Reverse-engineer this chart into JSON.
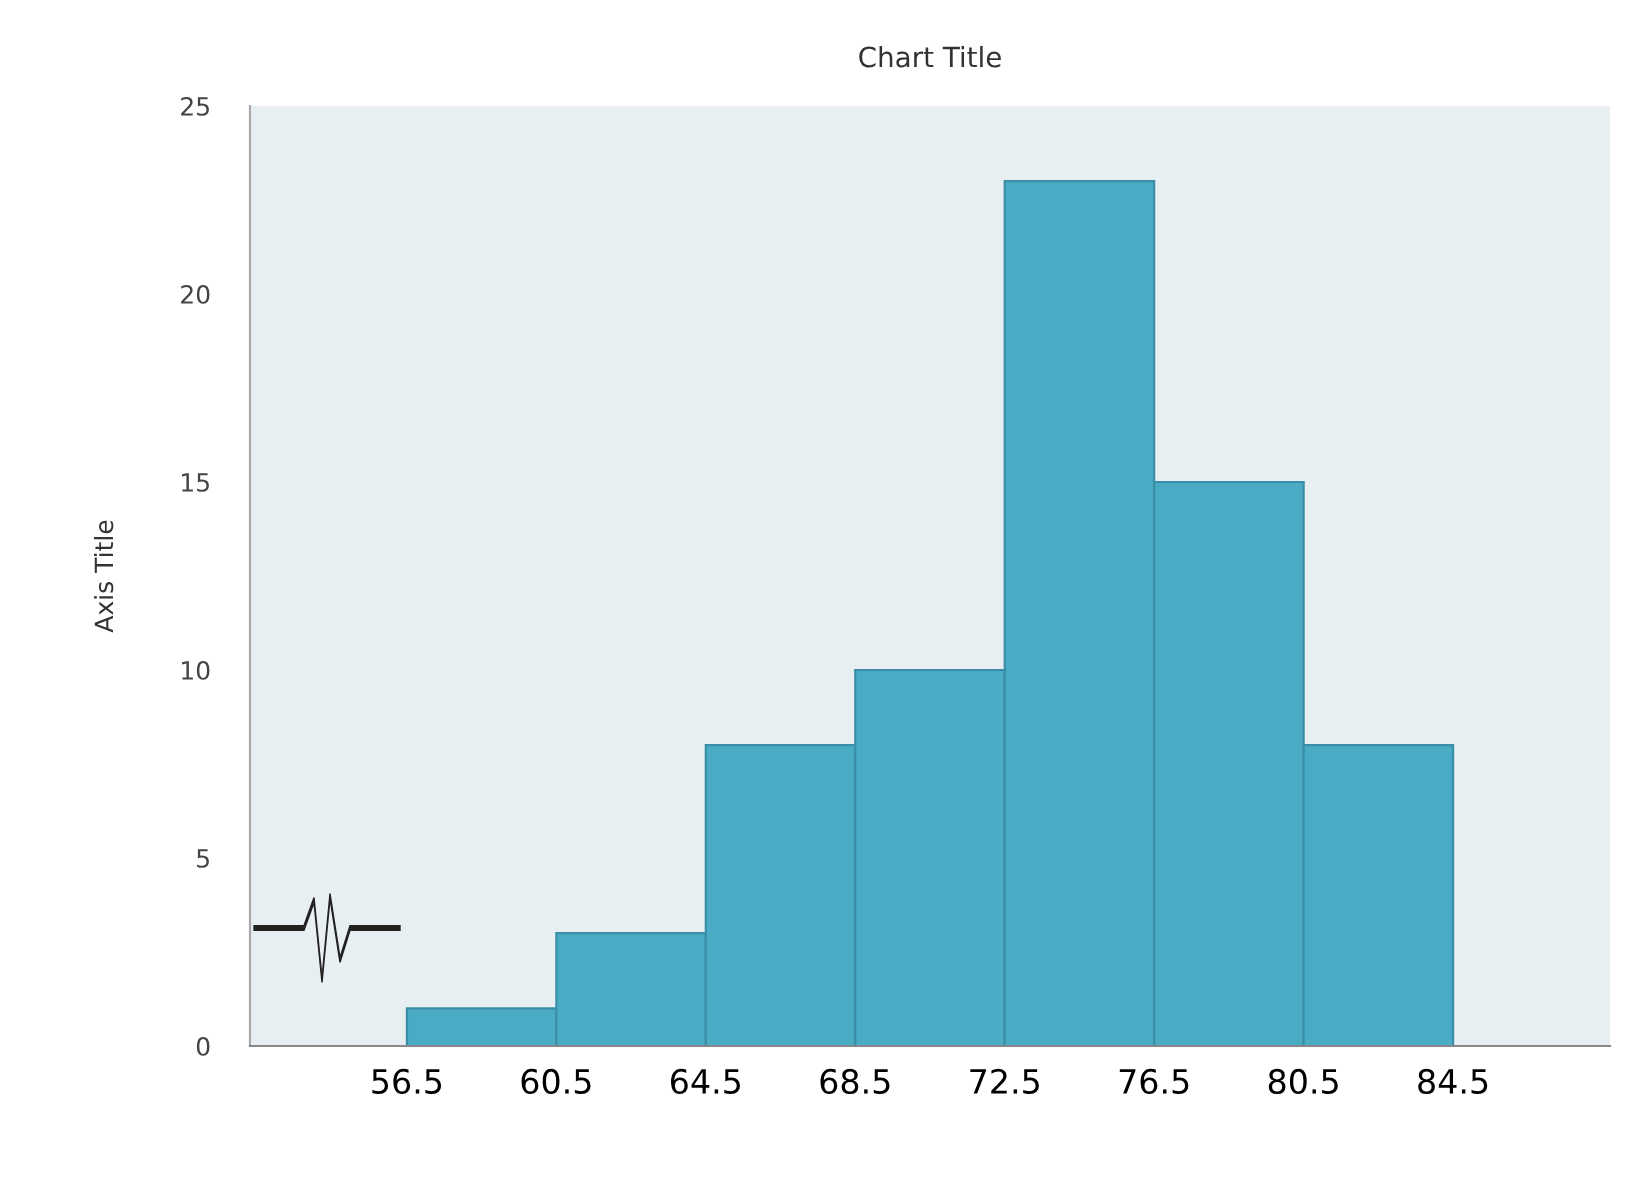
{
  "chart_data": {
    "type": "histogram",
    "title": "Chart Title",
    "ylabel": "Axis Title",
    "bins": [
      56.5,
      60.5,
      64.5,
      68.5,
      72.5,
      76.5,
      80.5,
      84.5
    ],
    "values": [
      1,
      3,
      8,
      10,
      23,
      15,
      8
    ],
    "color": "#4aabc5",
    "xlim": [
      52.3,
      88.7
    ],
    "xticks": [
      56.5,
      60.5,
      64.5,
      68.5,
      72.5,
      76.5,
      80.5,
      84.5
    ],
    "ylim": [
      0,
      25
    ],
    "yticks": [
      0,
      5,
      10,
      15,
      20,
      25
    ],
    "grid": false
  }
}
